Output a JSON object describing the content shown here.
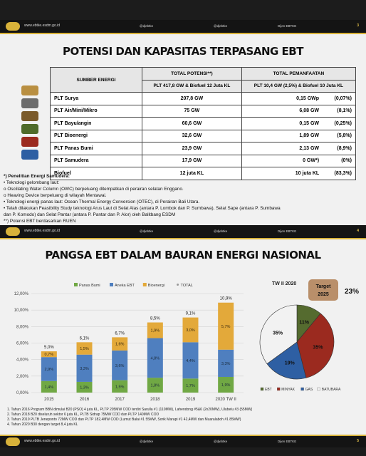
{
  "header": {
    "url": "www.ebtke.esdm.go.id",
    "handle1": "@djebtke",
    "handle2": "@djebtke",
    "handle3": "Dijen EBTKE"
  },
  "top": {
    "page": "3",
    "title": "POTENSI DAN KAPASITAS TERPASANG EBT",
    "table": {
      "col1": "SUMBER ENERGI",
      "col2a": "TOTAL POTENSI**)",
      "col2b": "PLT 417,8 GW & Biofuel 12 Juta KL",
      "col3a": "TOTAL PEMANFAATAN",
      "col3b": "PLT 10,4 GW (2,5%) & Biofuel 10 Juta KL",
      "rows": [
        {
          "name": "PLT Surya",
          "pot": "207,8",
          "pu": "GW",
          "use": "0,15 GWp",
          "pct": "(0,07%)"
        },
        {
          "name": "PLT Air/Mini/Mikro",
          "pot": "75",
          "pu": "GW",
          "use": "6,08 GW",
          "pct": "(8,1%)"
        },
        {
          "name": "PLT Bayu/angin",
          "pot": "60,6",
          "pu": "GW",
          "use": "0,15 GW",
          "pct": "(0,25%)"
        },
        {
          "name": "PLT Bioenergi",
          "pot": "32,6",
          "pu": "GW",
          "use": "1,89 GW",
          "pct": "(5,8%)"
        },
        {
          "name": "PLT Panas Bumi",
          "pot": "23,9",
          "pu": "GW",
          "use": "2,13 GW",
          "pct": "(8,9%)"
        },
        {
          "name": "PLT Samudera",
          "pot": "17,9",
          "pu": "GW",
          "use": "0 GW*)",
          "pct": "(0%)"
        },
        {
          "name": "Biofuel",
          "pot": "12 juta KL",
          "pu": "",
          "use": "10 juta KL",
          "pct": "(83,3%)"
        }
      ]
    },
    "notes": [
      "*) Penelitian Energi Samudera:",
      "• Teknologi gelombang laut:",
      "   o Oscillating Water Column (OWC) berpeluang ditempatkan di perairan selatan Enggano.",
      "   o Heaving Device berpeluang di wilayah Mentawai.",
      "• Teknologi energi panas laut: Ocean Thermal Energy Conversion (OTEC), di Perairan Bali Utara.",
      "• Telah dilakukan Feasibility Study teknologi Arus Laut di Selat Alas (antara P. Lombok dan P. Sumbawa), Selat Sape (antara P. Sumbawa",
      "   dan P. Komodo) dan Selat Pantar (antara P. Pantar dan P. Alor) oleh Balitbang ESDM",
      "**) Potensi EBT berdasarkan RUEN"
    ]
  },
  "bottom": {
    "page": "4",
    "title": "PANGSA EBT DALAM BAURAN ENERGI NASIONAL",
    "footnotes": [
      "1.  Tahun 2016 Program BBN dimulai B20 (PSO) 4 juta KL, PLTP 205MW COD terdiri Sarulla #1 (110MW), Lahendong #5&6 (2x20MW), Ulubelu #3 (55MW)",
      "2.  Tahun 2018 B20 diseluruh sektor 6 juta KL, PLTB Sidrap 75MW COD dan PLTP 140MW COD",
      "3.  Tahun 2019 PLTB Jeneponto 72MW COD dan PLTP 182,4MW COD (Lumut Balai #1 55MW, Sorik Marapi #1 42,4MW dan Muaralaboh #1 85MW)",
      "4.  Tahun 2020 B30 dengan target 8,4 juta KL"
    ]
  },
  "footer": {
    "url": "www.ebtke.esdm.go.id",
    "page": "5"
  },
  "chart_data": [
    {
      "type": "bar",
      "stacked": true,
      "categories": [
        "2015",
        "2016",
        "2017",
        "2018",
        "2019",
        "2020 TW II"
      ],
      "series": [
        {
          "name": "Panas Bumi",
          "color": "#70a844",
          "values": [
            1.4,
            1.3,
            1.5,
            1.8,
            1.7,
            1.9
          ]
        },
        {
          "name": "Aneka EBT",
          "color": "#4f7fbf",
          "values": [
            2.9,
            3.3,
            3.6,
            4.8,
            4.4,
            3.3
          ]
        },
        {
          "name": "Bioenergi",
          "color": "#e3a93a",
          "values": [
            0.7,
            1.5,
            1.6,
            1.9,
            3.0,
            5.7
          ]
        }
      ],
      "totals": {
        "name": "TOTAL",
        "labels": [
          "5,0%",
          "6,1%",
          "6,7%",
          "8,5%",
          "9,1%",
          "10,9%"
        ]
      },
      "labels": [
        [
          "1,4%",
          "2,9%",
          "0,7%"
        ],
        [
          "1,3%",
          "3,3%",
          "1,5%"
        ],
        [
          "1,5%",
          "3,6%",
          "1,6%"
        ],
        [
          "1,8%",
          "4,8%",
          "1,9%"
        ],
        [
          "1,7%",
          "4,4%",
          "3,0%"
        ],
        [
          "1,9%",
          "3,3%",
          "5,7%"
        ]
      ],
      "ylim": [
        0,
        12
      ],
      "yticks": [
        "0,00%",
        "2,00%",
        "4,00%",
        "6,00%",
        "8,00%",
        "10,00%",
        "12,00%"
      ],
      "grid": true,
      "legend": "top"
    },
    {
      "type": "pie",
      "title": "TW II 2020",
      "slices": [
        {
          "name": "EBT",
          "value": 11,
          "label": "11%",
          "color": "#556b2f"
        },
        {
          "name": "MINYAK",
          "value": 35,
          "label": "35%",
          "color": "#9b2a1f"
        },
        {
          "name": "GAS",
          "value": 19,
          "label": "19%",
          "color": "#2e5fa3"
        },
        {
          "name": "BATUBARA",
          "value": 35,
          "label": "35%",
          "color": "#f2f2f2"
        }
      ],
      "target": {
        "label": "Target",
        "year": "2025",
        "value": "23%"
      },
      "legend": "bottom"
    }
  ]
}
